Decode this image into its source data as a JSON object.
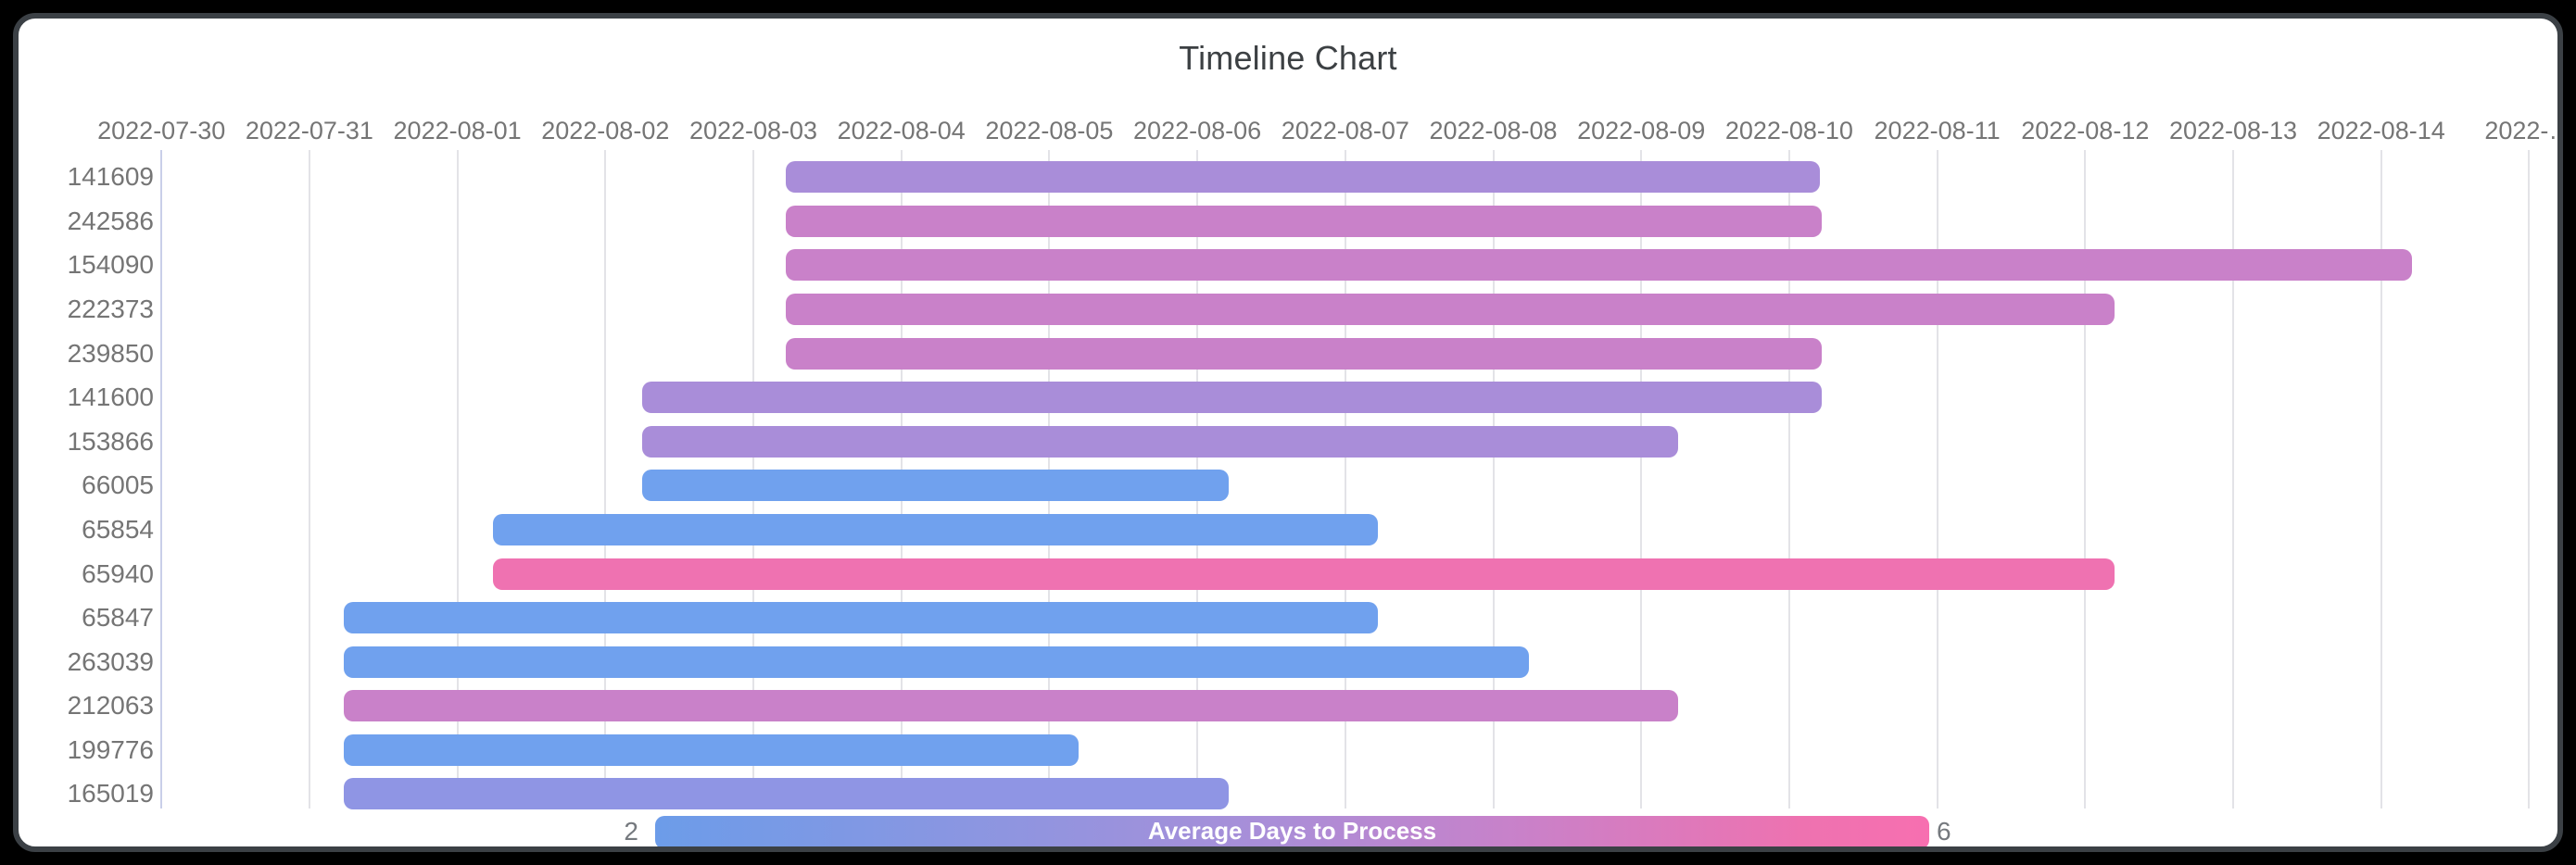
{
  "chart_data": {
    "type": "bar",
    "subtype": "timeline-gantt",
    "title": "Timeline Chart",
    "x_axis": {
      "origin_date": "2022-07-30",
      "tick_labels": [
        "2022-07-30",
        "2022-07-31",
        "2022-08-01",
        "2022-08-02",
        "2022-08-03",
        "2022-08-04",
        "2022-08-05",
        "2022-08-06",
        "2022-08-07",
        "2022-08-08",
        "2022-08-09",
        "2022-08-10",
        "2022-08-11",
        "2022-08-12",
        "2022-08-13",
        "2022-08-14",
        "2022-…"
      ],
      "grid": true
    },
    "rows": [
      {
        "id": "141609",
        "start_date": "2022-08-03",
        "end_date": "2022-08-10",
        "start_day": 4.22,
        "end_day": 11.21,
        "color": "#a98dd9"
      },
      {
        "id": "242586",
        "start_date": "2022-08-03",
        "end_date": "2022-08-10",
        "start_day": 4.22,
        "end_day": 11.22,
        "color": "#c981c9"
      },
      {
        "id": "154090",
        "start_date": "2022-08-03",
        "end_date": "2022-08-14",
        "start_day": 4.22,
        "end_day": 15.21,
        "color": "#c981c9"
      },
      {
        "id": "222373",
        "start_date": "2022-08-03",
        "end_date": "2022-08-12",
        "start_day": 4.22,
        "end_day": 13.2,
        "color": "#c981c9"
      },
      {
        "id": "239850",
        "start_date": "2022-08-03",
        "end_date": "2022-08-10",
        "start_day": 4.22,
        "end_day": 11.22,
        "color": "#c981c9"
      },
      {
        "id": "141600",
        "start_date": "2022-08-02",
        "end_date": "2022-08-10",
        "start_day": 3.25,
        "end_day": 11.22,
        "color": "#a98dd9"
      },
      {
        "id": "153866",
        "start_date": "2022-08-02",
        "end_date": "2022-08-09",
        "start_day": 3.25,
        "end_day": 10.25,
        "color": "#a98dd9"
      },
      {
        "id": "66005",
        "start_date": "2022-08-02",
        "end_date": "2022-08-06",
        "start_day": 3.25,
        "end_day": 7.21,
        "color": "#70a1ee"
      },
      {
        "id": "65854",
        "start_date": "2022-08-01",
        "end_date": "2022-08-07",
        "start_day": 2.24,
        "end_day": 8.22,
        "color": "#70a1ee"
      },
      {
        "id": "65940",
        "start_date": "2022-08-01",
        "end_date": "2022-08-12",
        "start_day": 2.24,
        "end_day": 13.2,
        "color": "#ef72b1"
      },
      {
        "id": "65847",
        "start_date": "2022-07-31",
        "end_date": "2022-08-07",
        "start_day": 1.23,
        "end_day": 8.22,
        "color": "#70a1ee"
      },
      {
        "id": "263039",
        "start_date": "2022-07-31",
        "end_date": "2022-08-08",
        "start_day": 1.23,
        "end_day": 9.24,
        "color": "#70a1ee"
      },
      {
        "id": "212063",
        "start_date": "2022-07-31",
        "end_date": "2022-08-09",
        "start_day": 1.23,
        "end_day": 10.25,
        "color": "#c981c9"
      },
      {
        "id": "199776",
        "start_date": "2022-07-31",
        "end_date": "2022-08-05",
        "start_day": 1.23,
        "end_day": 6.2,
        "color": "#70a1ee"
      },
      {
        "id": "165019",
        "start_date": "2022-07-31",
        "end_date": "2022-08-06",
        "start_day": 1.23,
        "end_day": 7.21,
        "color": "#8f95e4"
      }
    ],
    "legend": {
      "label": "Average Days to Process",
      "min": "2",
      "max": "6",
      "gradient_start_color": "#6c9ce9",
      "gradient_end_color": "#f76fb0",
      "position": "bottom"
    },
    "colors": {
      "grid_line": "#e3e3e7",
      "axis_start_line": "#c9cfe9",
      "title_text": "#3c4043",
      "axis_text": "#757575",
      "background": "#ffffff",
      "frame_border": "#3b4045",
      "page_background": "#000000"
    }
  }
}
